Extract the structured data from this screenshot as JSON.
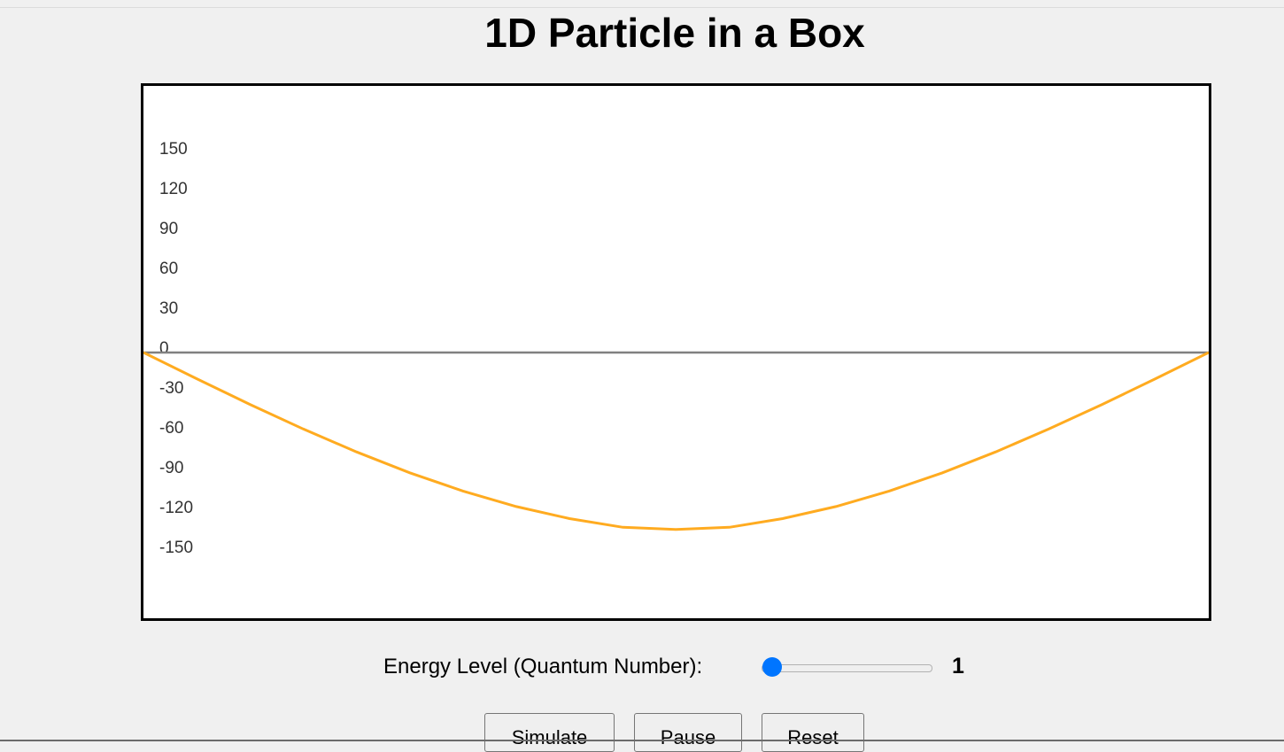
{
  "page": {
    "title": "1D Particle in a Box"
  },
  "chart_data": {
    "type": "line",
    "title": "",
    "xlabel": "",
    "ylabel": "",
    "ylim": [
      -190,
      150
    ],
    "yticks": [
      150,
      120,
      90,
      60,
      30,
      0,
      -30,
      -60,
      -90,
      -120,
      -150
    ],
    "grid": false,
    "baseline_color": "#808080",
    "series": [
      {
        "color": "#ffab20",
        "x": [
          0,
          0.05,
          0.1,
          0.15,
          0.2,
          0.25,
          0.3,
          0.35,
          0.4,
          0.45,
          0.5,
          0.55,
          0.6,
          0.65,
          0.7,
          0.75,
          0.8,
          0.85,
          0.9,
          0.95,
          1
        ],
        "y": [
          0,
          -19.7,
          -39.1,
          -57.5,
          -74.8,
          -90.5,
          -104.3,
          -115.9,
          -125.0,
          -131.5,
          -133.2,
          -131.5,
          -125.0,
          -115.9,
          -104.3,
          -90.5,
          -74.8,
          -57.5,
          -39.1,
          -19.7,
          0
        ]
      }
    ]
  },
  "controls": {
    "energy_label": "Energy Level (Quantum Number):",
    "energy_value": "1",
    "slider_fraction": 0,
    "accent_color": "#0075ff"
  },
  "buttons": {
    "simulate": "Simulate",
    "pause": "Pause",
    "reset": "Reset"
  }
}
